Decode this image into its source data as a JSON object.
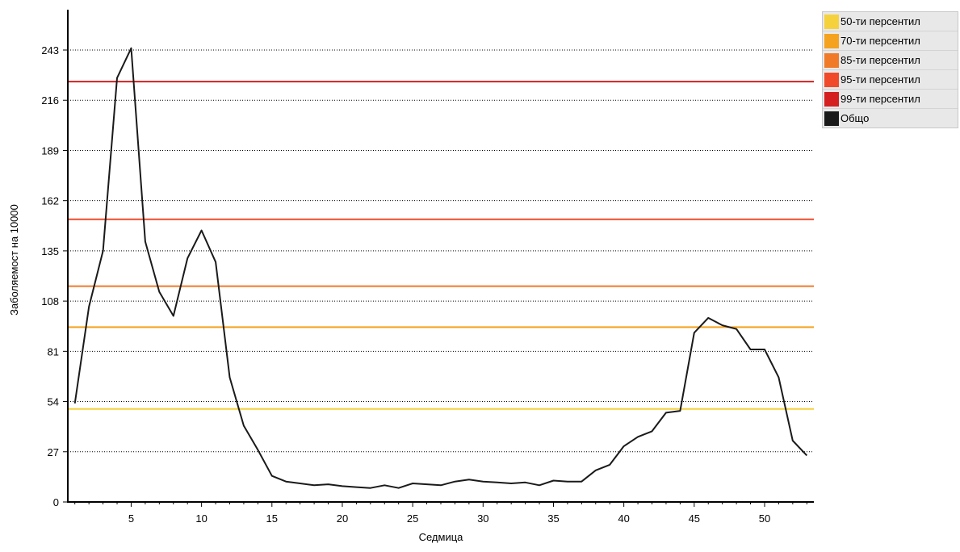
{
  "chart_data": {
    "type": "line",
    "title": "",
    "xlabel": "Седмица",
    "ylabel": "Заболяемост на 10000",
    "xlim": [
      0.5,
      53.5
    ],
    "ylim": [
      0,
      243
    ],
    "x_ticks": [
      5,
      10,
      15,
      20,
      25,
      30,
      35,
      40,
      45,
      50
    ],
    "y_ticks": [
      0,
      27,
      54,
      81,
      108,
      135,
      162,
      189,
      216,
      243
    ],
    "grid": "horizontal-dotted",
    "legend_position": "top-right",
    "thresholds": [
      {
        "name": "50-ти персентил",
        "value": 50,
        "color": "#f5d23c"
      },
      {
        "name": "70-ти персентил",
        "value": 94,
        "color": "#f5a21e"
      },
      {
        "name": "85-ти персентил",
        "value": 116,
        "color": "#f07a28"
      },
      {
        "name": "95-ти персентил",
        "value": 152,
        "color": "#f04a2a"
      },
      {
        "name": "99-ти персентил",
        "value": 226,
        "color": "#d42020"
      }
    ],
    "series": [
      {
        "name": "Общо",
        "color": "#1a1a1a",
        "x": [
          1,
          2,
          3,
          4,
          5,
          6,
          7,
          8,
          9,
          10,
          11,
          12,
          13,
          14,
          15,
          16,
          17,
          18,
          19,
          20,
          21,
          22,
          23,
          24,
          25,
          26,
          27,
          28,
          29,
          30,
          31,
          32,
          33,
          34,
          35,
          36,
          37,
          38,
          39,
          40,
          41,
          42,
          43,
          44,
          45,
          46,
          47,
          48,
          49,
          50,
          51,
          52,
          53
        ],
        "values": [
          53,
          105,
          135,
          228,
          244,
          140,
          113,
          100,
          131,
          146,
          129,
          67,
          41,
          28,
          14,
          11,
          10,
          9,
          9.5,
          8.5,
          8,
          7.5,
          9,
          7.5,
          10,
          9.5,
          9,
          11,
          12,
          11,
          10.5,
          10,
          10.5,
          9,
          11.5,
          11,
          11,
          17,
          20,
          30,
          35,
          38,
          48,
          49,
          91,
          99,
          95,
          93,
          82,
          82,
          67,
          33,
          25
        ]
      }
    ]
  },
  "legend": [
    {
      "label": "50-ти персентил",
      "color": "#f5d23c"
    },
    {
      "label": "70-ти персентил",
      "color": "#f5a21e"
    },
    {
      "label": "85-ти персентил",
      "color": "#f07a28"
    },
    {
      "label": "95-ти персентил",
      "color": "#f04a2a"
    },
    {
      "label": "99-ти персентил",
      "color": "#d42020"
    },
    {
      "label": "Общо",
      "color": "#1a1a1a"
    }
  ]
}
